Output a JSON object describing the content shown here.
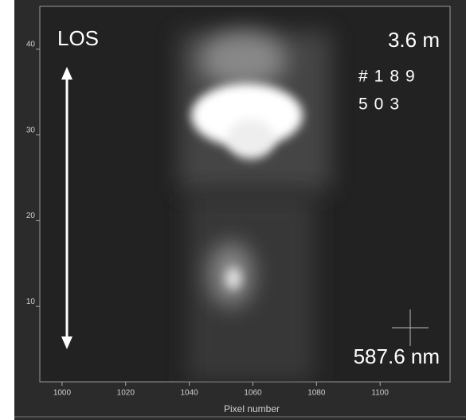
{
  "chart_data": {
    "type": "image",
    "x_label": "Pixel number",
    "xlim": [
      993,
      1122
    ],
    "xticks": [
      1000,
      1020,
      1040,
      1060,
      1080,
      1100
    ],
    "ylim": [
      1.2,
      45
    ],
    "yticks": [
      10,
      20,
      30,
      40
    ],
    "annotations": {
      "los": "LOS",
      "distance": "3.6 m",
      "shot": "#189",
      "shot_cont": "503",
      "wavelength": "587.6 nm"
    }
  }
}
